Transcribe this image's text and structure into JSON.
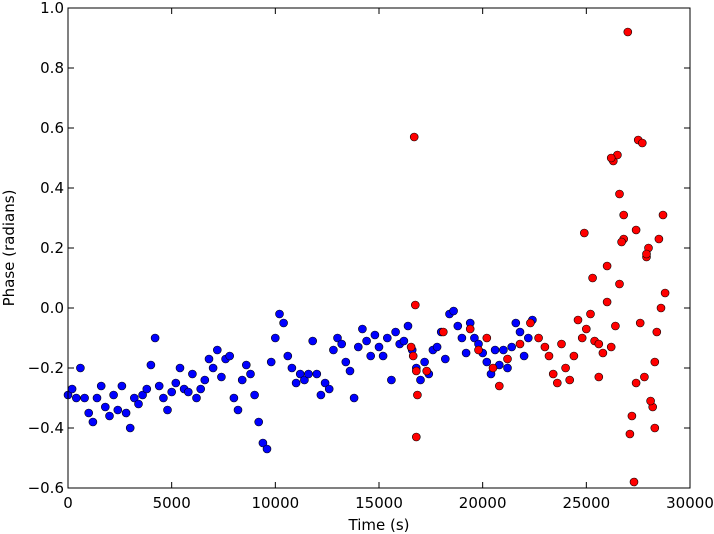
{
  "chart_data": {
    "type": "scatter",
    "xlabel": "Time (s)",
    "ylabel": "Phase (radians)",
    "xlim": [
      0,
      30000
    ],
    "ylim": [
      -0.6,
      1.0
    ],
    "x_ticks": [
      0,
      5000,
      10000,
      15000,
      20000,
      25000,
      30000
    ],
    "x_tick_labels": [
      "0",
      "5000",
      "10000",
      "15000",
      "20000",
      "25000",
      "30000"
    ],
    "y_ticks": [
      -0.6,
      -0.4,
      -0.2,
      0.0,
      0.2,
      0.4,
      0.6,
      0.8,
      1.0
    ],
    "y_tick_labels": [
      "−0.6",
      "−0.4",
      "−0.2",
      "0.0",
      "0.2",
      "0.4",
      "0.6",
      "0.8",
      "1.0"
    ],
    "grid": false,
    "colors": {
      "series_1": "#0000ff",
      "series_2": "#ff0000"
    },
    "series": [
      {
        "color": "#0000ff",
        "x": [
          0,
          200,
          400,
          600,
          800,
          1000,
          1200,
          1400,
          1600,
          1800,
          2000,
          2200,
          2400,
          2600,
          2800,
          3000,
          3200,
          3400,
          3600,
          3800,
          4000,
          4200,
          4400,
          4600,
          4800,
          5000,
          5200,
          5400,
          5600,
          5800,
          6000,
          6200,
          6400,
          6600,
          6800,
          7000,
          7200,
          7400,
          7600,
          7800,
          8000,
          8200,
          8400,
          8600,
          8800,
          9000,
          9200,
          9400,
          9600,
          9800,
          10000,
          10200,
          10400,
          10600,
          10800,
          11000,
          11200,
          11400,
          11600,
          11800,
          12000,
          12200,
          12400,
          12600,
          12800,
          13000,
          13200,
          13400,
          13600,
          13800,
          14000,
          14200,
          14400,
          14600,
          14800,
          15000,
          15200,
          15400,
          15600,
          15800,
          16000,
          16200,
          16400,
          16600,
          16800,
          17000,
          17200,
          17400,
          17600,
          17800,
          18000,
          18200,
          18400,
          18600,
          18800,
          19000,
          19200,
          19400,
          19600,
          19800,
          20000,
          20200,
          20400,
          20600,
          20800,
          21000,
          21200,
          21400,
          21600,
          21800,
          22000,
          22200,
          22400
        ],
        "y": [
          -0.29,
          -0.27,
          -0.3,
          -0.2,
          -0.3,
          -0.35,
          -0.38,
          -0.3,
          -0.26,
          -0.33,
          -0.36,
          -0.29,
          -0.34,
          -0.26,
          -0.35,
          -0.4,
          -0.3,
          -0.32,
          -0.29,
          -0.27,
          -0.19,
          -0.1,
          -0.26,
          -0.3,
          -0.34,
          -0.28,
          -0.25,
          -0.2,
          -0.27,
          -0.28,
          -0.22,
          -0.3,
          -0.27,
          -0.24,
          -0.17,
          -0.2,
          -0.14,
          -0.23,
          -0.17,
          -0.16,
          -0.3,
          -0.34,
          -0.24,
          -0.19,
          -0.22,
          -0.29,
          -0.38,
          -0.45,
          -0.47,
          -0.18,
          -0.1,
          -0.02,
          -0.05,
          -0.16,
          -0.2,
          -0.25,
          -0.22,
          -0.24,
          -0.22,
          -0.11,
          -0.22,
          -0.29,
          -0.25,
          -0.27,
          -0.14,
          -0.1,
          -0.12,
          -0.18,
          -0.21,
          -0.3,
          -0.13,
          -0.07,
          -0.11,
          -0.16,
          -0.09,
          -0.13,
          -0.16,
          -0.1,
          -0.24,
          -0.08,
          -0.12,
          -0.11,
          -0.06,
          -0.14,
          -0.2,
          -0.24,
          -0.18,
          -0.22,
          -0.14,
          -0.13,
          -0.08,
          -0.17,
          -0.02,
          -0.01,
          -0.06,
          -0.1,
          -0.15,
          -0.05,
          -0.1,
          -0.12,
          -0.15,
          -0.18,
          -0.22,
          -0.14,
          -0.19,
          -0.14,
          -0.2,
          -0.13,
          -0.05,
          -0.08,
          -0.16,
          -0.1,
          -0.04
        ]
      },
      {
        "color": "#ff0000",
        "x": [
          16550,
          16650,
          16700,
          16750,
          16800,
          16800,
          16850,
          17300,
          18100,
          19400,
          19800,
          20200,
          20500,
          20800,
          21200,
          21800,
          22300,
          22700,
          23000,
          23200,
          23400,
          23600,
          23800,
          24000,
          24200,
          24400,
          24600,
          24800,
          25000,
          25200,
          25400,
          25600,
          25800,
          26000,
          26200,
          26400,
          26600,
          26800,
          27000,
          27200,
          27400,
          27600,
          27800,
          28000,
          28200,
          28400,
          28600,
          28800,
          24900,
          25300,
          25600,
          26000,
          26300,
          26500,
          26700,
          26800,
          27100,
          27300,
          27500,
          27700,
          27900,
          28100,
          28300,
          28500,
          28700,
          26200,
          26600,
          27400,
          27900,
          28300
        ],
        "y": [
          -0.13,
          -0.16,
          0.57,
          0.01,
          -0.21,
          -0.43,
          -0.29,
          -0.21,
          -0.08,
          -0.07,
          -0.14,
          -0.1,
          -0.2,
          -0.26,
          -0.17,
          -0.12,
          -0.05,
          -0.1,
          -0.13,
          -0.16,
          -0.22,
          -0.25,
          -0.12,
          -0.2,
          -0.24,
          -0.16,
          -0.04,
          -0.1,
          -0.07,
          -0.02,
          -0.11,
          -0.23,
          -0.15,
          0.02,
          -0.13,
          -0.06,
          0.08,
          0.23,
          0.92,
          -0.36,
          -0.25,
          -0.05,
          -0.23,
          0.2,
          -0.33,
          -0.08,
          0.0,
          0.05,
          0.25,
          0.1,
          -0.12,
          0.14,
          0.49,
          0.51,
          0.22,
          0.31,
          -0.42,
          -0.58,
          0.56,
          0.55,
          0.17,
          -0.31,
          -0.18,
          0.23,
          0.31,
          0.5,
          0.38,
          0.26,
          0.18,
          -0.4
        ]
      }
    ]
  }
}
